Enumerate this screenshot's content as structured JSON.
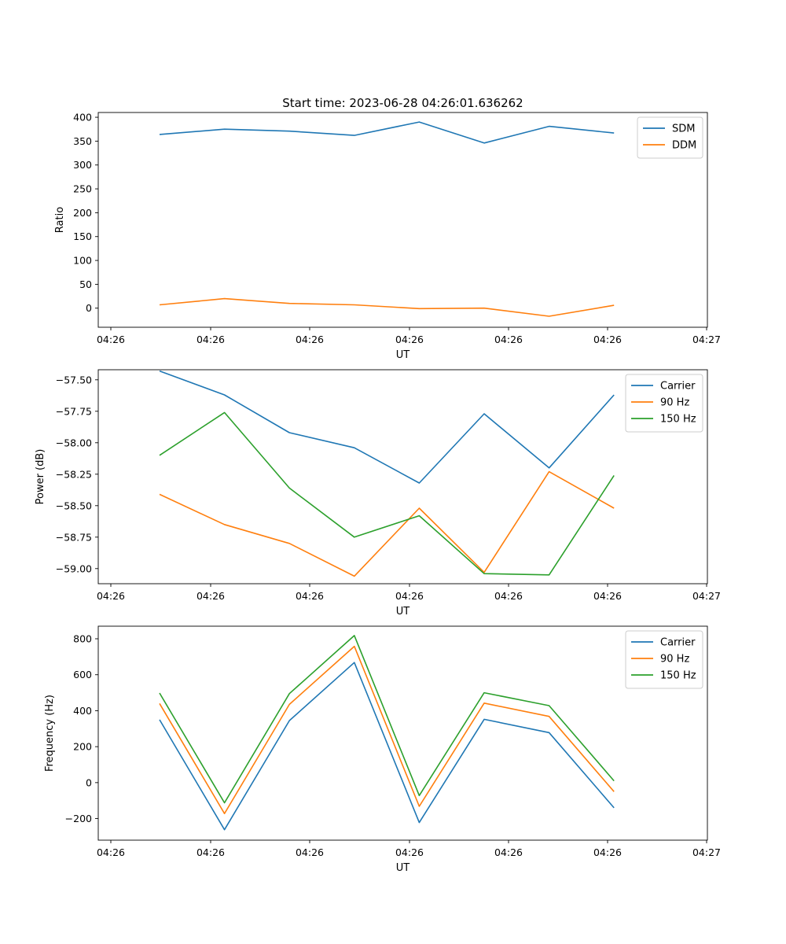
{
  "figure_title": "Start time: 2023-06-28 04:26:01.636262",
  "chart_data": [
    {
      "type": "line",
      "title": "Start time: 2023-06-28 04:26:01.636262",
      "xlabel": "UT",
      "ylabel": "Ratio",
      "xticks": [
        "04:26",
        "04:26",
        "04:26",
        "04:26",
        "04:26",
        "04:26",
        "04:26"
      ],
      "xlabel_last_tick": "04:27",
      "x_index": [
        1,
        2,
        3,
        4,
        5,
        6,
        7,
        8
      ],
      "ylim": [
        -40,
        410
      ],
      "yticks": [
        0,
        50,
        100,
        150,
        200,
        250,
        300,
        350,
        400
      ],
      "legend": "top-right",
      "series": [
        {
          "name": "SDM",
          "color": "#1f77b4",
          "values": [
            364,
            375,
            371,
            362,
            390,
            346,
            381,
            367
          ]
        },
        {
          "name": "DDM",
          "color": "#ff7f0e",
          "values": [
            7,
            20,
            10,
            7,
            -1,
            0,
            -17,
            6
          ]
        }
      ]
    },
    {
      "type": "line",
      "xlabel": "UT",
      "ylabel": "Power (dB)",
      "xticks": [
        "04:26",
        "04:26",
        "04:26",
        "04:26",
        "04:26",
        "04:26",
        "04:26"
      ],
      "xlabel_last_tick": "04:27",
      "x_index": [
        1,
        2,
        3,
        4,
        5,
        6,
        7,
        8
      ],
      "ylim": [
        -59.12,
        -57.42
      ],
      "yticks": [
        -59.0,
        -58.75,
        -58.5,
        -58.25,
        -58.0,
        -57.75,
        -57.5
      ],
      "ytick_labels": [
        "−59.00",
        "−58.75",
        "−58.50",
        "−58.25",
        "−58.00",
        "−57.75",
        "−57.50"
      ],
      "legend": "top-right",
      "series": [
        {
          "name": "Carrier",
          "color": "#1f77b4",
          "values": [
            -57.43,
            -57.62,
            -57.92,
            -58.04,
            -58.32,
            -57.77,
            -58.2,
            -57.62
          ]
        },
        {
          "name": "90 Hz",
          "color": "#ff7f0e",
          "values": [
            -58.41,
            -58.65,
            -58.8,
            -59.06,
            -58.52,
            -59.03,
            -58.23,
            -58.52
          ]
        },
        {
          "name": "150 Hz",
          "color": "#2ca02c",
          "values": [
            -58.1,
            -57.76,
            -58.36,
            -58.75,
            -58.58,
            -59.04,
            -59.05,
            -58.26
          ]
        }
      ]
    },
    {
      "type": "line",
      "xlabel": "UT",
      "ylabel": "Frequency (Hz)",
      "xticks": [
        "04:26",
        "04:26",
        "04:26",
        "04:26",
        "04:26",
        "04:26",
        "04:26"
      ],
      "xlabel_last_tick": "04:27",
      "x_index": [
        1,
        2,
        3,
        4,
        5,
        6,
        7,
        8
      ],
      "ylim": [
        -320,
        870
      ],
      "yticks": [
        -200,
        0,
        200,
        400,
        600,
        800
      ],
      "ytick_labels": [
        "−200",
        "0",
        "200",
        "400",
        "600",
        "800"
      ],
      "legend": "top-right",
      "series": [
        {
          "name": "Carrier",
          "color": "#1f77b4",
          "values": [
            350,
            -262,
            345,
            668,
            -222,
            352,
            278,
            -140
          ]
        },
        {
          "name": "90 Hz",
          "color": "#ff7f0e",
          "values": [
            440,
            -172,
            435,
            758,
            -132,
            442,
            368,
            -50
          ]
        },
        {
          "name": "150 Hz",
          "color": "#2ca02c",
          "values": [
            498,
            -112,
            495,
            818,
            -72,
            500,
            428,
            10
          ]
        }
      ]
    }
  ]
}
